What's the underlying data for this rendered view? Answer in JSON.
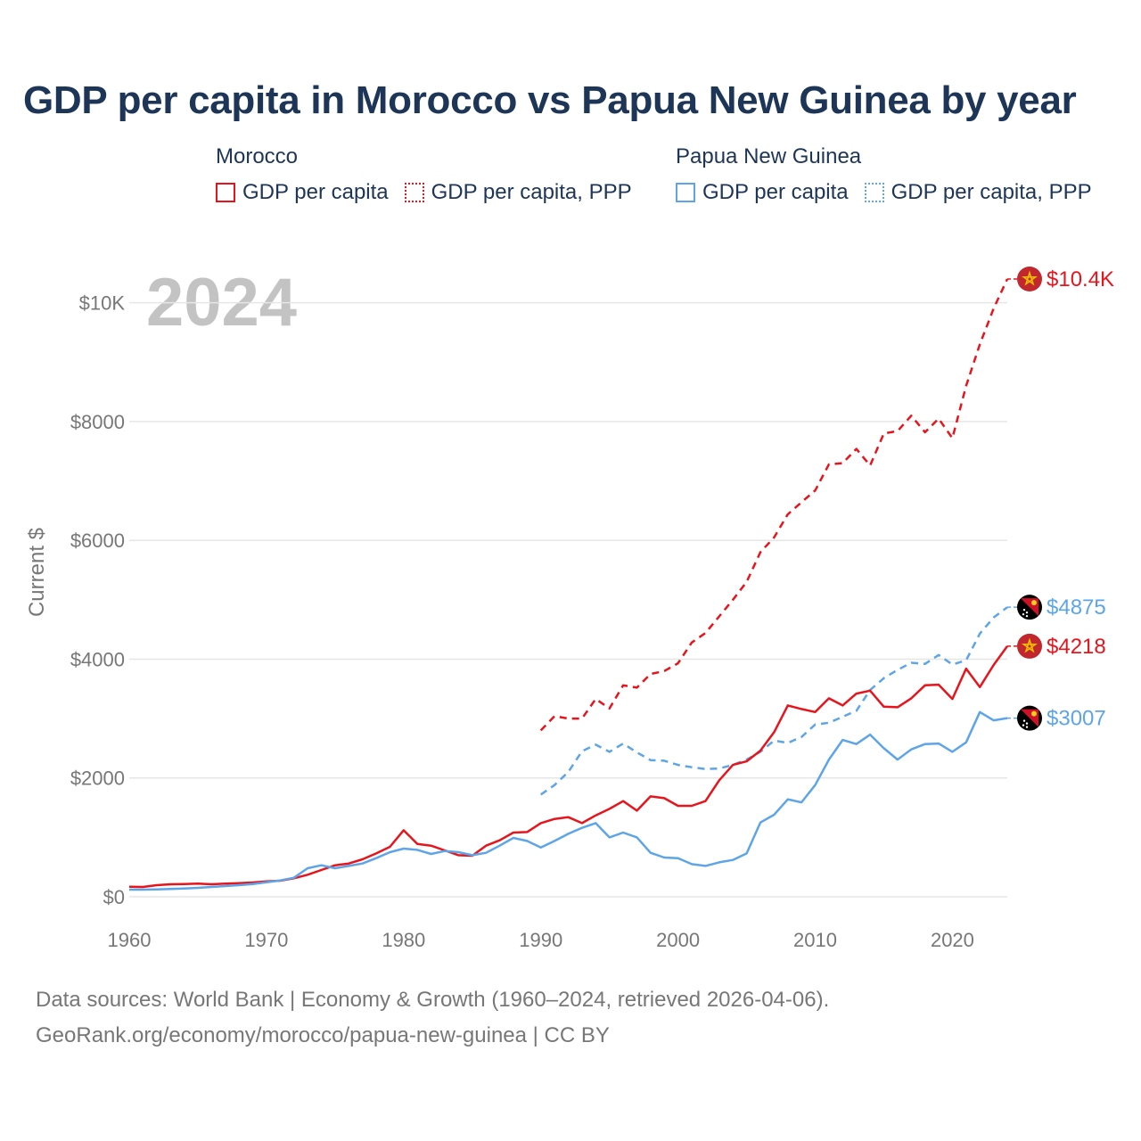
{
  "title": "GDP per capita in Morocco vs Papua New Guinea by year",
  "year_display": "2024",
  "legend": {
    "morocco": {
      "name": "Morocco",
      "gdp": "GDP per capita",
      "ppp": "GDP per capita, PPP"
    },
    "png": {
      "name": "Papua New Guinea",
      "gdp": "GDP per capita",
      "ppp": "GDP per capita, PPP"
    }
  },
  "footer": {
    "line1": "Data sources: World Bank | Economy & Growth (1960–2024, retrieved 2026-04-06).",
    "line2": "GeoRank.org/economy/morocco/papua-new-guinea | CC BY"
  },
  "colors": {
    "morocco": "#e8141c",
    "png": "#5da5e8",
    "grid": "#e6e6e6",
    "text": "#1d3557"
  },
  "chart_data": {
    "type": "line",
    "title": "GDP per capita in Morocco vs Papua New Guinea by year",
    "xlabel": "",
    "ylabel": "Current $",
    "xlim": [
      1960,
      2024
    ],
    "ylim": [
      0,
      10400
    ],
    "x_ticks": [
      1960,
      1970,
      1980,
      1990,
      2000,
      2010,
      2020
    ],
    "x_tick_labels": [
      "1960",
      "1970",
      "1980",
      "1990",
      "2000",
      "2010",
      "2020"
    ],
    "y_ticks": [
      0,
      2000,
      4000,
      6000,
      8000,
      10000
    ],
    "y_tick_labels": [
      "$0",
      "$2000",
      "$4000",
      "$6000",
      "$8000",
      "$10K"
    ],
    "series": [
      {
        "name": "Morocco GDP per capita, PPP",
        "country": "morocco",
        "style": "dashed",
        "x": [
          1990,
          1991,
          1992,
          1993,
          1994,
          1995,
          1996,
          1997,
          1998,
          1999,
          2000,
          2001,
          2002,
          2003,
          2004,
          2005,
          2006,
          2007,
          2008,
          2009,
          2010,
          2011,
          2012,
          2013,
          2014,
          2015,
          2016,
          2017,
          2018,
          2019,
          2020,
          2021,
          2022,
          2023,
          2024
        ],
        "values": [
          2800,
          3040,
          3000,
          3000,
          3330,
          3170,
          3560,
          3520,
          3750,
          3800,
          3930,
          4280,
          4440,
          4720,
          5000,
          5300,
          5800,
          6050,
          6440,
          6640,
          6840,
          7280,
          7300,
          7540,
          7260,
          7800,
          7840,
          8100,
          7820,
          8050,
          7720,
          8600,
          9300,
          9900,
          10400
        ],
        "end_label": "$10.4K"
      },
      {
        "name": "Papua New Guinea GDP per capita, PPP",
        "country": "png",
        "style": "dashed",
        "x": [
          1990,
          1991,
          1992,
          1993,
          1994,
          1995,
          1996,
          1997,
          1998,
          1999,
          2000,
          2001,
          2002,
          2003,
          2004,
          2005,
          2006,
          2007,
          2008,
          2009,
          2010,
          2011,
          2012,
          2013,
          2014,
          2015,
          2016,
          2017,
          2018,
          2019,
          2020,
          2021,
          2022,
          2023,
          2024
        ],
        "values": [
          1720,
          1880,
          2100,
          2450,
          2560,
          2440,
          2580,
          2430,
          2300,
          2290,
          2220,
          2180,
          2150,
          2160,
          2220,
          2310,
          2440,
          2630,
          2590,
          2690,
          2900,
          2930,
          3030,
          3130,
          3480,
          3680,
          3820,
          3940,
          3920,
          4070,
          3910,
          3980,
          4430,
          4700,
          4875
        ],
        "end_label": "$4875"
      },
      {
        "name": "Morocco GDP per capita",
        "country": "morocco",
        "style": "solid",
        "x": [
          1960,
          1961,
          1962,
          1963,
          1964,
          1965,
          1966,
          1967,
          1968,
          1969,
          1970,
          1971,
          1972,
          1973,
          1974,
          1975,
          1976,
          1977,
          1978,
          1979,
          1980,
          1981,
          1982,
          1983,
          1984,
          1985,
          1986,
          1987,
          1988,
          1989,
          1990,
          1991,
          1992,
          1993,
          1994,
          1995,
          1996,
          1997,
          1998,
          1999,
          2000,
          2001,
          2002,
          2003,
          2004,
          2005,
          2006,
          2007,
          2008,
          2009,
          2010,
          2011,
          2012,
          2013,
          2014,
          2015,
          2016,
          2017,
          2018,
          2019,
          2020,
          2021,
          2022,
          2023,
          2024
        ],
        "values": [
          170,
          165,
          195,
          210,
          215,
          220,
          210,
          220,
          230,
          240,
          260,
          270,
          310,
          370,
          450,
          530,
          560,
          630,
          730,
          840,
          1120,
          890,
          860,
          780,
          700,
          690,
          860,
          950,
          1080,
          1090,
          1240,
          1310,
          1340,
          1240,
          1370,
          1480,
          1610,
          1450,
          1690,
          1660,
          1530,
          1530,
          1610,
          1960,
          2220,
          2280,
          2460,
          2770,
          3220,
          3160,
          3110,
          3340,
          3220,
          3420,
          3470,
          3200,
          3190,
          3340,
          3560,
          3570,
          3330,
          3840,
          3530,
          3900,
          4218
        ],
        "end_label": "$4218"
      },
      {
        "name": "Papua New Guinea GDP per capita",
        "country": "png",
        "style": "solid",
        "x": [
          1960,
          1961,
          1962,
          1963,
          1964,
          1965,
          1966,
          1967,
          1968,
          1969,
          1970,
          1971,
          1972,
          1973,
          1974,
          1975,
          1976,
          1977,
          1978,
          1979,
          1980,
          1981,
          1982,
          1983,
          1984,
          1985,
          1986,
          1987,
          1988,
          1989,
          1990,
          1991,
          1992,
          1993,
          1994,
          1995,
          1996,
          1997,
          1998,
          1999,
          2000,
          2001,
          2002,
          2003,
          2004,
          2005,
          2006,
          2007,
          2008,
          2009,
          2010,
          2011,
          2012,
          2013,
          2014,
          2015,
          2016,
          2017,
          2018,
          2019,
          2020,
          2021,
          2022,
          2023,
          2024
        ],
        "values": [
          120,
          120,
          125,
          130,
          140,
          150,
          165,
          180,
          195,
          215,
          245,
          275,
          320,
          480,
          530,
          480,
          520,
          560,
          650,
          750,
          810,
          790,
          720,
          770,
          750,
          700,
          740,
          860,
          990,
          940,
          830,
          940,
          1060,
          1160,
          1240,
          1000,
          1080,
          1000,
          740,
          660,
          650,
          550,
          520,
          580,
          620,
          730,
          1250,
          1380,
          1640,
          1590,
          1880,
          2310,
          2640,
          2570,
          2730,
          2500,
          2310,
          2480,
          2570,
          2580,
          2440,
          2600,
          3110,
          2970,
          3007
        ],
        "end_label": "$3007"
      }
    ]
  }
}
